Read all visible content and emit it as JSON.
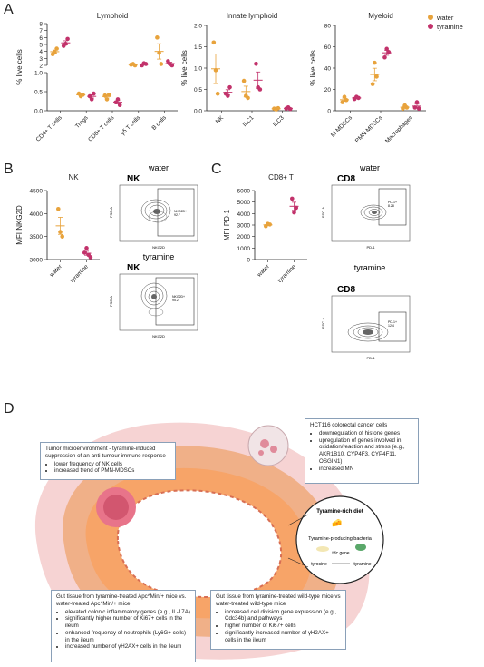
{
  "panel_labels": {
    "a": "A",
    "b": "B",
    "c": "C",
    "d": "D"
  },
  "legend": {
    "items": [
      {
        "label": "water",
        "color": "#e8a33c"
      },
      {
        "label": "tyramine",
        "color": "#c2326b"
      }
    ]
  },
  "chart_data": [
    {
      "type": "scatter",
      "title": "Lymphoid",
      "ylabel": "% live cells",
      "categories": [
        "CD4+ T cells",
        "Tregs",
        "CD8+ T cells",
        "γδ T cells",
        "B cells"
      ],
      "yticks_upper": [
        "2",
        "3",
        "4",
        "5",
        "6",
        "7",
        "8"
      ],
      "yticks_lower": [
        "0.0",
        "0.5",
        "1.0"
      ],
      "axis_break": true,
      "series": [
        {
          "name": "water",
          "values": [
            [
              3.6,
              3.9,
              4.4
            ],
            [
              0.45,
              0.38,
              0.42
            ],
            [
              0.4,
              0.3,
              0.42
            ],
            [
              2.1,
              2.2,
              2.0
            ],
            [
              6.0,
              3.8,
              2.2
            ]
          ]
        },
        {
          "name": "tyramine",
          "values": [
            [
              4.8,
              5.1,
              5.8
            ],
            [
              0.38,
              0.3,
              0.45
            ],
            [
              0.22,
              0.3,
              0.15
            ],
            [
              2.0,
              2.3,
              2.2
            ],
            [
              2.6,
              2.2,
              2.0
            ]
          ]
        }
      ]
    },
    {
      "type": "scatter",
      "title": "Innate lymphoid",
      "ylabel": "% live cells",
      "categories": [
        "NK",
        "ILC1",
        "ILC3"
      ],
      "yticks": [
        "0.0",
        "0.5",
        "1.0",
        "1.5",
        "2.0"
      ],
      "ylim": [
        0,
        2
      ],
      "series": [
        {
          "name": "water",
          "values": [
            [
              1.6,
              0.95,
              0.4
            ],
            [
              0.7,
              0.35,
              0.3
            ],
            [
              0.05,
              0.03,
              0.06
            ]
          ]
        },
        {
          "name": "tyramine",
          "values": [
            [
              0.4,
              0.35,
              0.55
            ],
            [
              1.1,
              0.55,
              0.5
            ],
            [
              0.05,
              0.08,
              0.04
            ]
          ]
        }
      ]
    },
    {
      "type": "scatter",
      "title": "Myeloid",
      "ylabel": "% live cells",
      "categories": [
        "M-MDSCs",
        "PMN-MDSCs",
        "Macrophages"
      ],
      "yticks": [
        "0",
        "20",
        "40",
        "60",
        "80"
      ],
      "ylim": [
        0,
        80
      ],
      "series": [
        {
          "name": "water",
          "values": [
            [
              8,
              13,
              10
            ],
            [
              25,
              45,
              32
            ],
            [
              2,
              5,
              3
            ]
          ]
        },
        {
          "name": "tyramine",
          "values": [
            [
              11,
              13,
              12
            ],
            [
              50,
              58,
              55
            ],
            [
              3,
              8,
              2
            ]
          ]
        }
      ]
    },
    {
      "type": "scatter",
      "title": "NK",
      "ylabel": "MFI NKG2D",
      "categories": [
        "water",
        "tyramine"
      ],
      "yticks": [
        "3000",
        "3500",
        "4000",
        "4500"
      ],
      "ylim": [
        3000,
        4500
      ],
      "series": [
        {
          "name": "water",
          "values": [
            [
              4100,
              3600,
              3500
            ]
          ]
        },
        {
          "name": "tyramine",
          "values": [
            [
              3150,
              3250,
              3100,
              3050
            ]
          ]
        }
      ]
    },
    {
      "type": "scatter",
      "title": "CD8+ T",
      "ylabel": "MFI PD-1",
      "categories": [
        "water",
        "tyramine"
      ],
      "yticks": [
        "0",
        "1000",
        "2000",
        "3000",
        "4000",
        "5000",
        "6000"
      ],
      "ylim": [
        0,
        6000
      ],
      "series": [
        {
          "name": "water",
          "values": [
            [
              2900,
              3100,
              3050
            ]
          ]
        },
        {
          "name": "tyramine",
          "values": [
            [
              5300,
              4100,
              4500
            ]
          ]
        }
      ]
    }
  ],
  "flow": {
    "b_water_title": "water",
    "b_water_label": "NK",
    "b_tyr_title": "tyramine",
    "b_tyr_label": "NK",
    "b_xaxis": "NKG2D",
    "b_yaxis": "FSC-A",
    "b_gate_water": "NKG2D+\n92.7",
    "b_gate_tyr": "NKG2D+\n95.2",
    "c_water_title": "water",
    "c_water_label": "CD8",
    "c_tyr_title": "tyramine",
    "c_tyr_label": "CD8",
    "c_xaxis": "PD-1",
    "c_yaxis": "FSC-A",
    "c_gate_water": "PD-1+\n8.28",
    "c_gate_tyr": "PD-1+\n12.4"
  },
  "diagram": {
    "tme_box": {
      "title": "Tumor microenvironment - tyramine-induced suppression of an anti-tumour immune response",
      "items": [
        "lower frequency of NK cells",
        "increased trend of PMN-MDSCs"
      ]
    },
    "hct_box": {
      "title": "HCT116 colorectal cancer cells",
      "items": [
        "downregulation of histone genes",
        "upregulation of genes involved in oxidation/reaction and stress (e.g., AKR1B10, CYP4F3, CYP4F11, OSGIN1)",
        "increased MN"
      ]
    },
    "diet": {
      "title": "Tyramine-rich diet",
      "bacteria": "Tyramine-producing bacteria",
      "gene": "tdc gene",
      "tyrosine": "tyrosine",
      "tyramine": "tyramine"
    },
    "apc_box": {
      "title": "Gut tissue from tyramine-treated Apc^Min/+ mice vs. water-treated Apc^Min/+ mice",
      "items": [
        "elevated colonic inflammatory genes (e.g., IL-17A)",
        "significantly higher number of Ki67+ cells in the ileum",
        "enhanced frequency of neutrophils (Ly6G+ cells) in the ileum",
        "increased number of γH2AX+ cells in the ileum"
      ]
    },
    "wt_box": {
      "title": "Gut tissue from tyramine-treated wild-type mice vs water-treated wild-type mice",
      "items": [
        "increased cell division gene expression (e.g., Cdc34b) and pathways",
        "higher number of Ki67+ cells",
        "significantly increased number of γH2AX+ cells in the ileum"
      ]
    }
  },
  "colors": {
    "water": "#e8a33c",
    "tyramine": "#c2326b",
    "gut_outer": "#f4c7c7",
    "gut_mid": "#f2a76c",
    "gut_inner": "#f7d9d9"
  }
}
